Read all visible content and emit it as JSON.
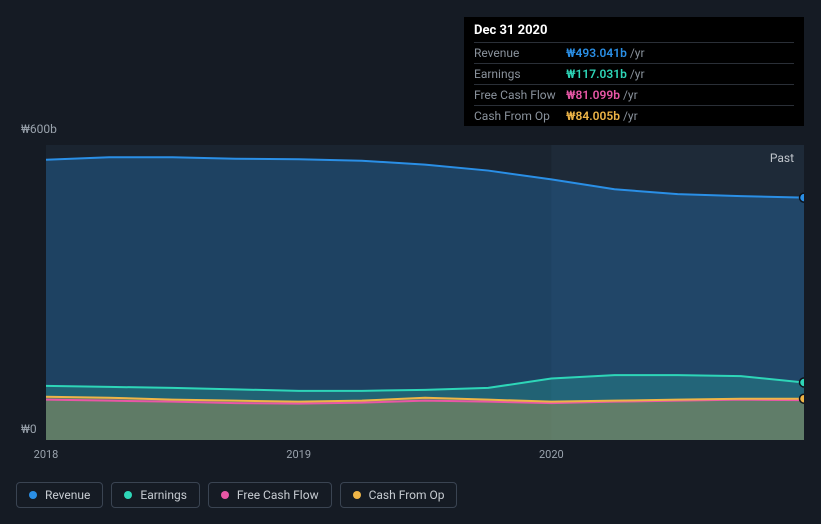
{
  "tooltip": {
    "date": "Dec 31 2020",
    "unit": "/yr",
    "rows": [
      {
        "label": "Revenue",
        "value": "₩493.041b",
        "color": "#2a8fe6"
      },
      {
        "label": "Earnings",
        "value": "₩117.031b",
        "color": "#2ed6b8"
      },
      {
        "label": "Free Cash Flow",
        "value": "₩81.099b",
        "color": "#e857a6"
      },
      {
        "label": "Cash From Op",
        "value": "₩84.005b",
        "color": "#eeb547"
      }
    ]
  },
  "chart": {
    "type": "area",
    "background_color": "#151b24",
    "plot_fill_left": "#1a2430",
    "plot_fill_right": "#1e2a38",
    "ylim": [
      0,
      600
    ],
    "y_ticks": [
      {
        "v": 600,
        "label": "₩600b"
      },
      {
        "v": 0,
        "label": "₩0"
      }
    ],
    "x_domain": [
      2018,
      2021
    ],
    "x_ticks": [
      {
        "v": 2018,
        "label": "2018"
      },
      {
        "v": 2019,
        "label": "2019"
      },
      {
        "v": 2020,
        "label": "2020"
      }
    ],
    "shade_from_x": 2020,
    "past_label": "Past",
    "series": [
      {
        "key": "revenue",
        "label": "Revenue",
        "color": "#2a8fe6",
        "fill_opacity": 0.28,
        "line_width": 2,
        "end_marker": true,
        "points": [
          [
            2018.0,
            570
          ],
          [
            2018.25,
            575
          ],
          [
            2018.5,
            575
          ],
          [
            2018.75,
            572
          ],
          [
            2019.0,
            571
          ],
          [
            2019.25,
            568
          ],
          [
            2019.5,
            560
          ],
          [
            2019.75,
            548
          ],
          [
            2020.0,
            530
          ],
          [
            2020.25,
            510
          ],
          [
            2020.5,
            500
          ],
          [
            2020.75,
            496
          ],
          [
            2021.0,
            493
          ]
        ]
      },
      {
        "key": "earnings",
        "label": "Earnings",
        "color": "#2ed6b8",
        "fill_opacity": 0.22,
        "line_width": 2,
        "end_marker": true,
        "points": [
          [
            2018.0,
            110
          ],
          [
            2018.25,
            108
          ],
          [
            2018.5,
            106
          ],
          [
            2018.75,
            103
          ],
          [
            2019.0,
            100
          ],
          [
            2019.25,
            100
          ],
          [
            2019.5,
            102
          ],
          [
            2019.75,
            106
          ],
          [
            2020.0,
            125
          ],
          [
            2020.25,
            132
          ],
          [
            2020.5,
            132
          ],
          [
            2020.75,
            130
          ],
          [
            2021.0,
            117
          ]
        ]
      },
      {
        "key": "fcf",
        "label": "Free Cash Flow",
        "color": "#e857a6",
        "fill_opacity": 0.0,
        "line_width": 2,
        "end_marker": false,
        "points": [
          [
            2018.0,
            82
          ],
          [
            2018.25,
            80
          ],
          [
            2018.5,
            78
          ],
          [
            2018.75,
            75
          ],
          [
            2019.0,
            74
          ],
          [
            2019.25,
            76
          ],
          [
            2019.5,
            80
          ],
          [
            2019.75,
            78
          ],
          [
            2020.0,
            75
          ],
          [
            2020.25,
            78
          ],
          [
            2020.5,
            80
          ],
          [
            2020.75,
            82
          ],
          [
            2021.0,
            81
          ]
        ]
      },
      {
        "key": "cfo",
        "label": "Cash From Op",
        "color": "#eeb547",
        "fill_opacity": 0.3,
        "line_width": 2,
        "end_marker": true,
        "points": [
          [
            2018.0,
            88
          ],
          [
            2018.25,
            86
          ],
          [
            2018.5,
            82
          ],
          [
            2018.75,
            80
          ],
          [
            2019.0,
            78
          ],
          [
            2019.25,
            80
          ],
          [
            2019.5,
            86
          ],
          [
            2019.75,
            82
          ],
          [
            2020.0,
            78
          ],
          [
            2020.25,
            80
          ],
          [
            2020.5,
            82
          ],
          [
            2020.75,
            84
          ],
          [
            2021.0,
            84
          ]
        ]
      }
    ]
  },
  "legend": [
    {
      "label": "Revenue",
      "color": "#2a8fe6",
      "key": "revenue"
    },
    {
      "label": "Earnings",
      "color": "#2ed6b8",
      "key": "earnings"
    },
    {
      "label": "Free Cash Flow",
      "color": "#e857a6",
      "key": "fcf"
    },
    {
      "label": "Cash From Op",
      "color": "#eeb547",
      "key": "cfo"
    }
  ]
}
